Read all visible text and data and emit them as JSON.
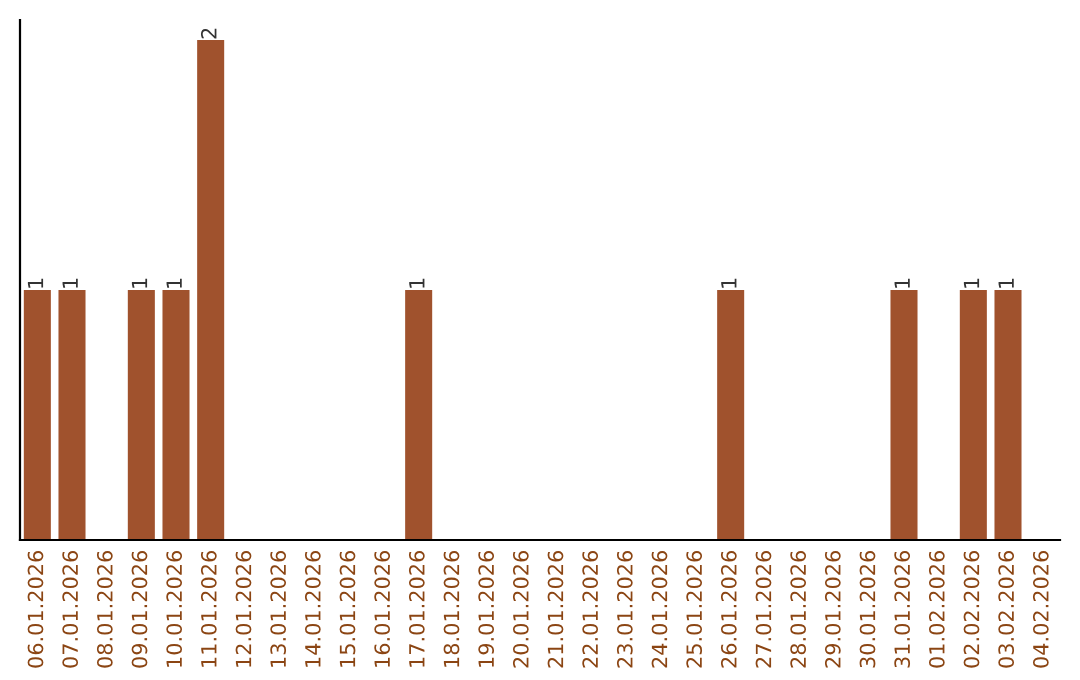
{
  "chart_data": {
    "type": "bar",
    "categories": [
      "06.01.2026",
      "07.01.2026",
      "08.01.2026",
      "09.01.2026",
      "10.01.2026",
      "11.01.2026",
      "12.01.2026",
      "13.01.2026",
      "14.01.2026",
      "15.01.2026",
      "16.01.2026",
      "17.01.2026",
      "18.01.2026",
      "19.01.2026",
      "20.01.2026",
      "21.01.2026",
      "22.01.2026",
      "23.01.2026",
      "24.01.2026",
      "25.01.2026",
      "26.01.2026",
      "27.01.2026",
      "28.01.2026",
      "29.01.2026",
      "30.01.2026",
      "31.01.2026",
      "01.02.2026",
      "02.02.2026",
      "03.02.2026",
      "04.02.2026"
    ],
    "values": [
      1,
      1,
      0,
      1,
      1,
      2,
      0,
      0,
      0,
      0,
      0,
      1,
      0,
      0,
      0,
      0,
      0,
      0,
      0,
      0,
      1,
      0,
      0,
      0,
      0,
      1,
      0,
      1,
      1,
      0
    ],
    "value_labels": [
      "1",
      "1",
      null,
      "1",
      "1",
      "2",
      null,
      null,
      null,
      null,
      null,
      "1",
      null,
      null,
      null,
      null,
      null,
      null,
      null,
      null,
      "1",
      null,
      null,
      null,
      null,
      "1",
      null,
      "1",
      "1",
      null
    ],
    "color": "#a0522d",
    "grid": false,
    "legend": false,
    "tick_labels": "x"
  }
}
